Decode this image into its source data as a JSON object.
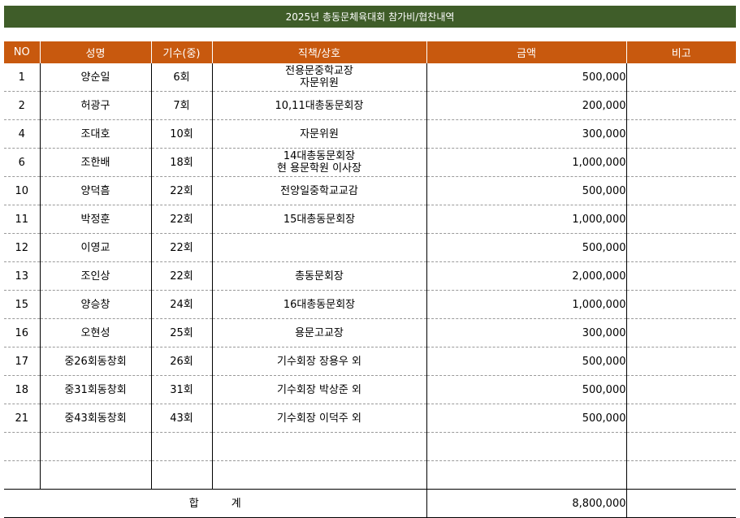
{
  "title": "2025년 총동문체육대회 참가비/협찬내역",
  "headers": {
    "no": "NO",
    "name": "성명",
    "class": "기수(중)",
    "position": "직책/상호",
    "amount": "금액",
    "note": "비고"
  },
  "rows": [
    {
      "no": "1",
      "name": "양순일",
      "class": "6회",
      "position": "전용문중학교장\n자문위원",
      "amount": "500,000",
      "note": ""
    },
    {
      "no": "2",
      "name": "허광구",
      "class": "7회",
      "position": "10,11대총동문회장",
      "amount": "200,000",
      "note": ""
    },
    {
      "no": "4",
      "name": "조대호",
      "class": "10회",
      "position": "자문위원",
      "amount": "300,000",
      "note": ""
    },
    {
      "no": "6",
      "name": "조한배",
      "class": "18회",
      "position": "14대총동문회장\n현 용문학원 이사장",
      "amount": "1,000,000",
      "note": ""
    },
    {
      "no": "10",
      "name": "양덕흠",
      "class": "22회",
      "position": "전양일중학교교감",
      "amount": "500,000",
      "note": ""
    },
    {
      "no": "11",
      "name": "박정훈",
      "class": "22회",
      "position": "15대총동문회장",
      "amount": "1,000,000",
      "note": ""
    },
    {
      "no": "12",
      "name": "이영교",
      "class": "22회",
      "position": "",
      "amount": "500,000",
      "note": ""
    },
    {
      "no": "13",
      "name": "조인상",
      "class": "22회",
      "position": "총동문회장",
      "amount": "2,000,000",
      "note": ""
    },
    {
      "no": "15",
      "name": "양승창",
      "class": "24회",
      "position": "16대총동문회장",
      "amount": "1,000,000",
      "note": ""
    },
    {
      "no": "16",
      "name": "오현성",
      "class": "25회",
      "position": "용문고교장",
      "amount": "300,000",
      "note": ""
    },
    {
      "no": "17",
      "name": "중26회동창회",
      "class": "26회",
      "position": "기수회장 장용우 외",
      "amount": "500,000",
      "note": ""
    },
    {
      "no": "18",
      "name": "중31회동창회",
      "class": "31회",
      "position": "기수회장 박상준 외",
      "amount": "500,000",
      "note": ""
    },
    {
      "no": "21",
      "name": "중43회동창회",
      "class": "43회",
      "position": "기수회장 이덕주 외",
      "amount": "500,000",
      "note": ""
    }
  ],
  "total": {
    "label": "합계",
    "amount": "8,800,000"
  }
}
